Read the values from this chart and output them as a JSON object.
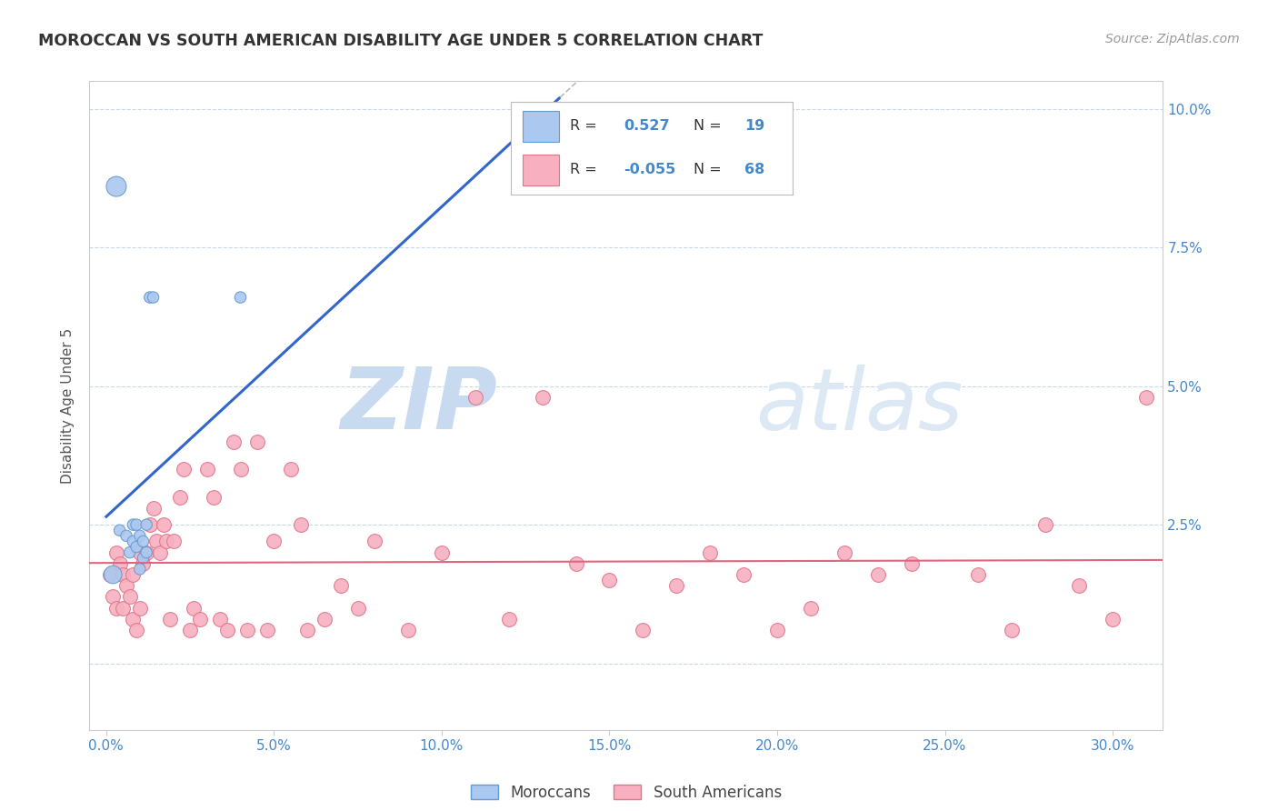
{
  "title": "MOROCCAN VS SOUTH AMERICAN DISABILITY AGE UNDER 5 CORRELATION CHART",
  "source": "Source: ZipAtlas.com",
  "ylabel": "Disability Age Under 5",
  "xlabel_ticks": [
    "0.0%",
    "5.0%",
    "10.0%",
    "15.0%",
    "20.0%",
    "25.0%",
    "30.0%"
  ],
  "xlabel_vals": [
    0.0,
    0.05,
    0.1,
    0.15,
    0.2,
    0.25,
    0.3
  ],
  "ylabel_ticks_right": [
    "10.0%",
    "7.5%",
    "5.0%",
    "2.5%",
    ""
  ],
  "ylabel_vals": [
    0.0,
    0.025,
    0.05,
    0.075,
    0.1
  ],
  "xlim": [
    -0.005,
    0.315
  ],
  "ylim": [
    -0.012,
    0.105
  ],
  "moroccan_R": 0.527,
  "moroccan_N": 19,
  "sa_R": -0.055,
  "sa_N": 68,
  "moroccan_color": "#aac8f0",
  "moroccan_edge": "#6699cc",
  "moroccan_line_color": "#3366cc",
  "sa_color": "#f8b0c0",
  "sa_edge": "#dd7788",
  "sa_line_color": "#dd6680",
  "watermark_zip_color": "#ccddf5",
  "watermark_atlas_color": "#dde8f8",
  "background_color": "#ffffff",
  "grid_color": "#c8d8e8",
  "title_color": "#333333",
  "source_color": "#999999",
  "tick_color": "#4488cc",
  "moroccan_x": [
    0.002,
    0.004,
    0.006,
    0.007,
    0.008,
    0.008,
    0.009,
    0.009,
    0.01,
    0.01,
    0.011,
    0.011,
    0.012,
    0.012,
    0.013,
    0.014,
    0.04,
    0.13,
    0.003
  ],
  "moroccan_y": [
    0.016,
    0.024,
    0.023,
    0.02,
    0.025,
    0.022,
    0.025,
    0.021,
    0.023,
    0.017,
    0.022,
    0.019,
    0.025,
    0.02,
    0.066,
    0.066,
    0.066,
    0.095,
    0.086
  ],
  "moroccan_sizes": [
    200,
    80,
    80,
    80,
    80,
    80,
    80,
    80,
    80,
    80,
    80,
    80,
    80,
    80,
    80,
    80,
    80,
    80,
    250
  ],
  "sa_x": [
    0.001,
    0.002,
    0.003,
    0.003,
    0.004,
    0.005,
    0.005,
    0.006,
    0.007,
    0.008,
    0.008,
    0.009,
    0.01,
    0.01,
    0.011,
    0.012,
    0.013,
    0.014,
    0.015,
    0.016,
    0.017,
    0.018,
    0.019,
    0.02,
    0.022,
    0.023,
    0.025,
    0.026,
    0.028,
    0.03,
    0.032,
    0.034,
    0.036,
    0.038,
    0.04,
    0.042,
    0.045,
    0.048,
    0.05,
    0.055,
    0.058,
    0.06,
    0.065,
    0.07,
    0.075,
    0.08,
    0.09,
    0.1,
    0.11,
    0.12,
    0.13,
    0.14,
    0.15,
    0.16,
    0.17,
    0.18,
    0.19,
    0.2,
    0.21,
    0.22,
    0.23,
    0.24,
    0.26,
    0.27,
    0.28,
    0.29,
    0.3,
    0.31
  ],
  "sa_y": [
    0.016,
    0.012,
    0.02,
    0.01,
    0.018,
    0.016,
    0.01,
    0.014,
    0.012,
    0.016,
    0.008,
    0.006,
    0.02,
    0.01,
    0.018,
    0.02,
    0.025,
    0.028,
    0.022,
    0.02,
    0.025,
    0.022,
    0.008,
    0.022,
    0.03,
    0.035,
    0.006,
    0.01,
    0.008,
    0.035,
    0.03,
    0.008,
    0.006,
    0.04,
    0.035,
    0.006,
    0.04,
    0.006,
    0.022,
    0.035,
    0.025,
    0.006,
    0.008,
    0.014,
    0.01,
    0.022,
    0.006,
    0.02,
    0.048,
    0.008,
    0.048,
    0.018,
    0.015,
    0.006,
    0.014,
    0.02,
    0.016,
    0.006,
    0.01,
    0.02,
    0.016,
    0.018,
    0.016,
    0.006,
    0.025,
    0.014,
    0.008,
    0.048
  ],
  "legend_moroccan_label": "R =   0.527   N = 19",
  "legend_sa_label": "R = -0.055   N = 68",
  "bottom_legend_moroccan": "Moroccans",
  "bottom_legend_sa": "South Americans"
}
